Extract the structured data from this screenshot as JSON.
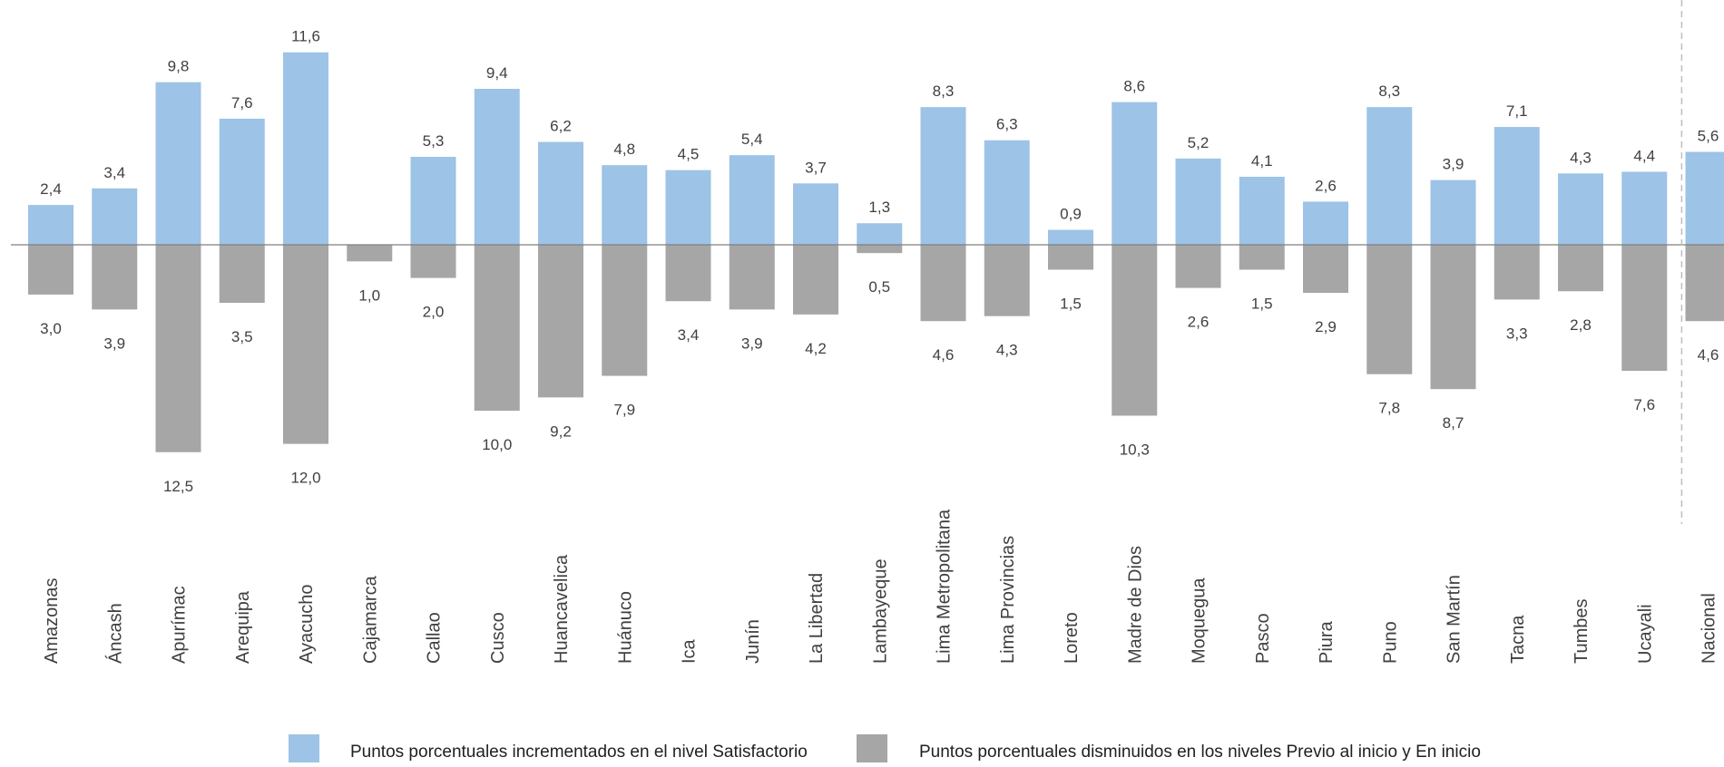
{
  "chart_data": {
    "type": "bar",
    "categories": [
      "Amazonas",
      "Áncash",
      "Apurímac",
      "Arequipa",
      "Ayacucho",
      "Cajamarca",
      "Callao",
      "Cusco",
      "Huancavelica",
      "Huánuco",
      "Ica",
      "Junín",
      "La Libertad",
      "Lambayeque",
      "Lima Metropolitana",
      "Lima Provincias",
      "Loreto",
      "Madre de Dios",
      "Moquegua",
      "Pasco",
      "Piura",
      "Puno",
      "San Martín",
      "Tacna",
      "Tumbes",
      "Ucayali",
      "Nacional"
    ],
    "series": [
      {
        "name": "Puntos porcentuales incrementados en el nivel Satisfactorio",
        "color": "#9DC3E6",
        "values": [
          2.4,
          3.4,
          9.8,
          7.6,
          11.6,
          0,
          5.3,
          9.4,
          6.2,
          4.8,
          4.5,
          5.4,
          3.7,
          1.3,
          8.3,
          6.3,
          0.9,
          8.6,
          5.2,
          4.1,
          2.6,
          8.3,
          3.9,
          7.1,
          4.3,
          4.4,
          5.6
        ],
        "labels": [
          "2,4",
          "3,4",
          "9,8",
          "7,6",
          "11,6",
          "",
          "5,3",
          "9,4",
          "6,2",
          "4,8",
          "4,5",
          "5,4",
          "3,7",
          "1,3",
          "8,3",
          "6,3",
          "0,9",
          "8,6",
          "5,2",
          "4,1",
          "2,6",
          "8,3",
          "3,9",
          "7,1",
          "4,3",
          "4,4",
          "5,6"
        ]
      },
      {
        "name": "Puntos porcentuales disminuidos en los niveles Previo al inicio y En inicio",
        "color": "#A6A6A6",
        "values": [
          -3.0,
          -3.9,
          -12.5,
          -3.5,
          -12.0,
          -1.0,
          -2.0,
          -10.0,
          -9.2,
          -7.9,
          -3.4,
          -3.9,
          -4.2,
          -0.5,
          -4.6,
          -4.3,
          -1.5,
          -10.3,
          -2.6,
          -1.5,
          -2.9,
          -7.8,
          -8.7,
          -3.3,
          -2.8,
          -7.6,
          -4.6
        ],
        "labels": [
          "3,0",
          "3,9",
          "12,5",
          "3,5",
          "12,0",
          "1,0",
          "2,0",
          "10,0",
          "9,2",
          "7,9",
          "3,4",
          "3,9",
          "4,2",
          "0,5",
          "4,6",
          "4,3",
          "1,5",
          "10,3",
          "2,6",
          "1,5",
          "2,9",
          "7,8",
          "8,7",
          "3,3",
          "2,8",
          "7,6",
          "4,6"
        ]
      }
    ],
    "separator_before_category": "Nacional",
    "legend_position": "bottom",
    "grid": false,
    "zero_line_color": "#7f7f7f",
    "separator_color": "#bfbfbf"
  },
  "legend": {
    "items": [
      {
        "label": "Puntos porcentuales incrementados en el nivel Satisfactorio",
        "color": "#9DC3E6"
      },
      {
        "label": "Puntos porcentuales disminuidos en los niveles Previo al inicio y En inicio",
        "color": "#A6A6A6"
      }
    ]
  }
}
